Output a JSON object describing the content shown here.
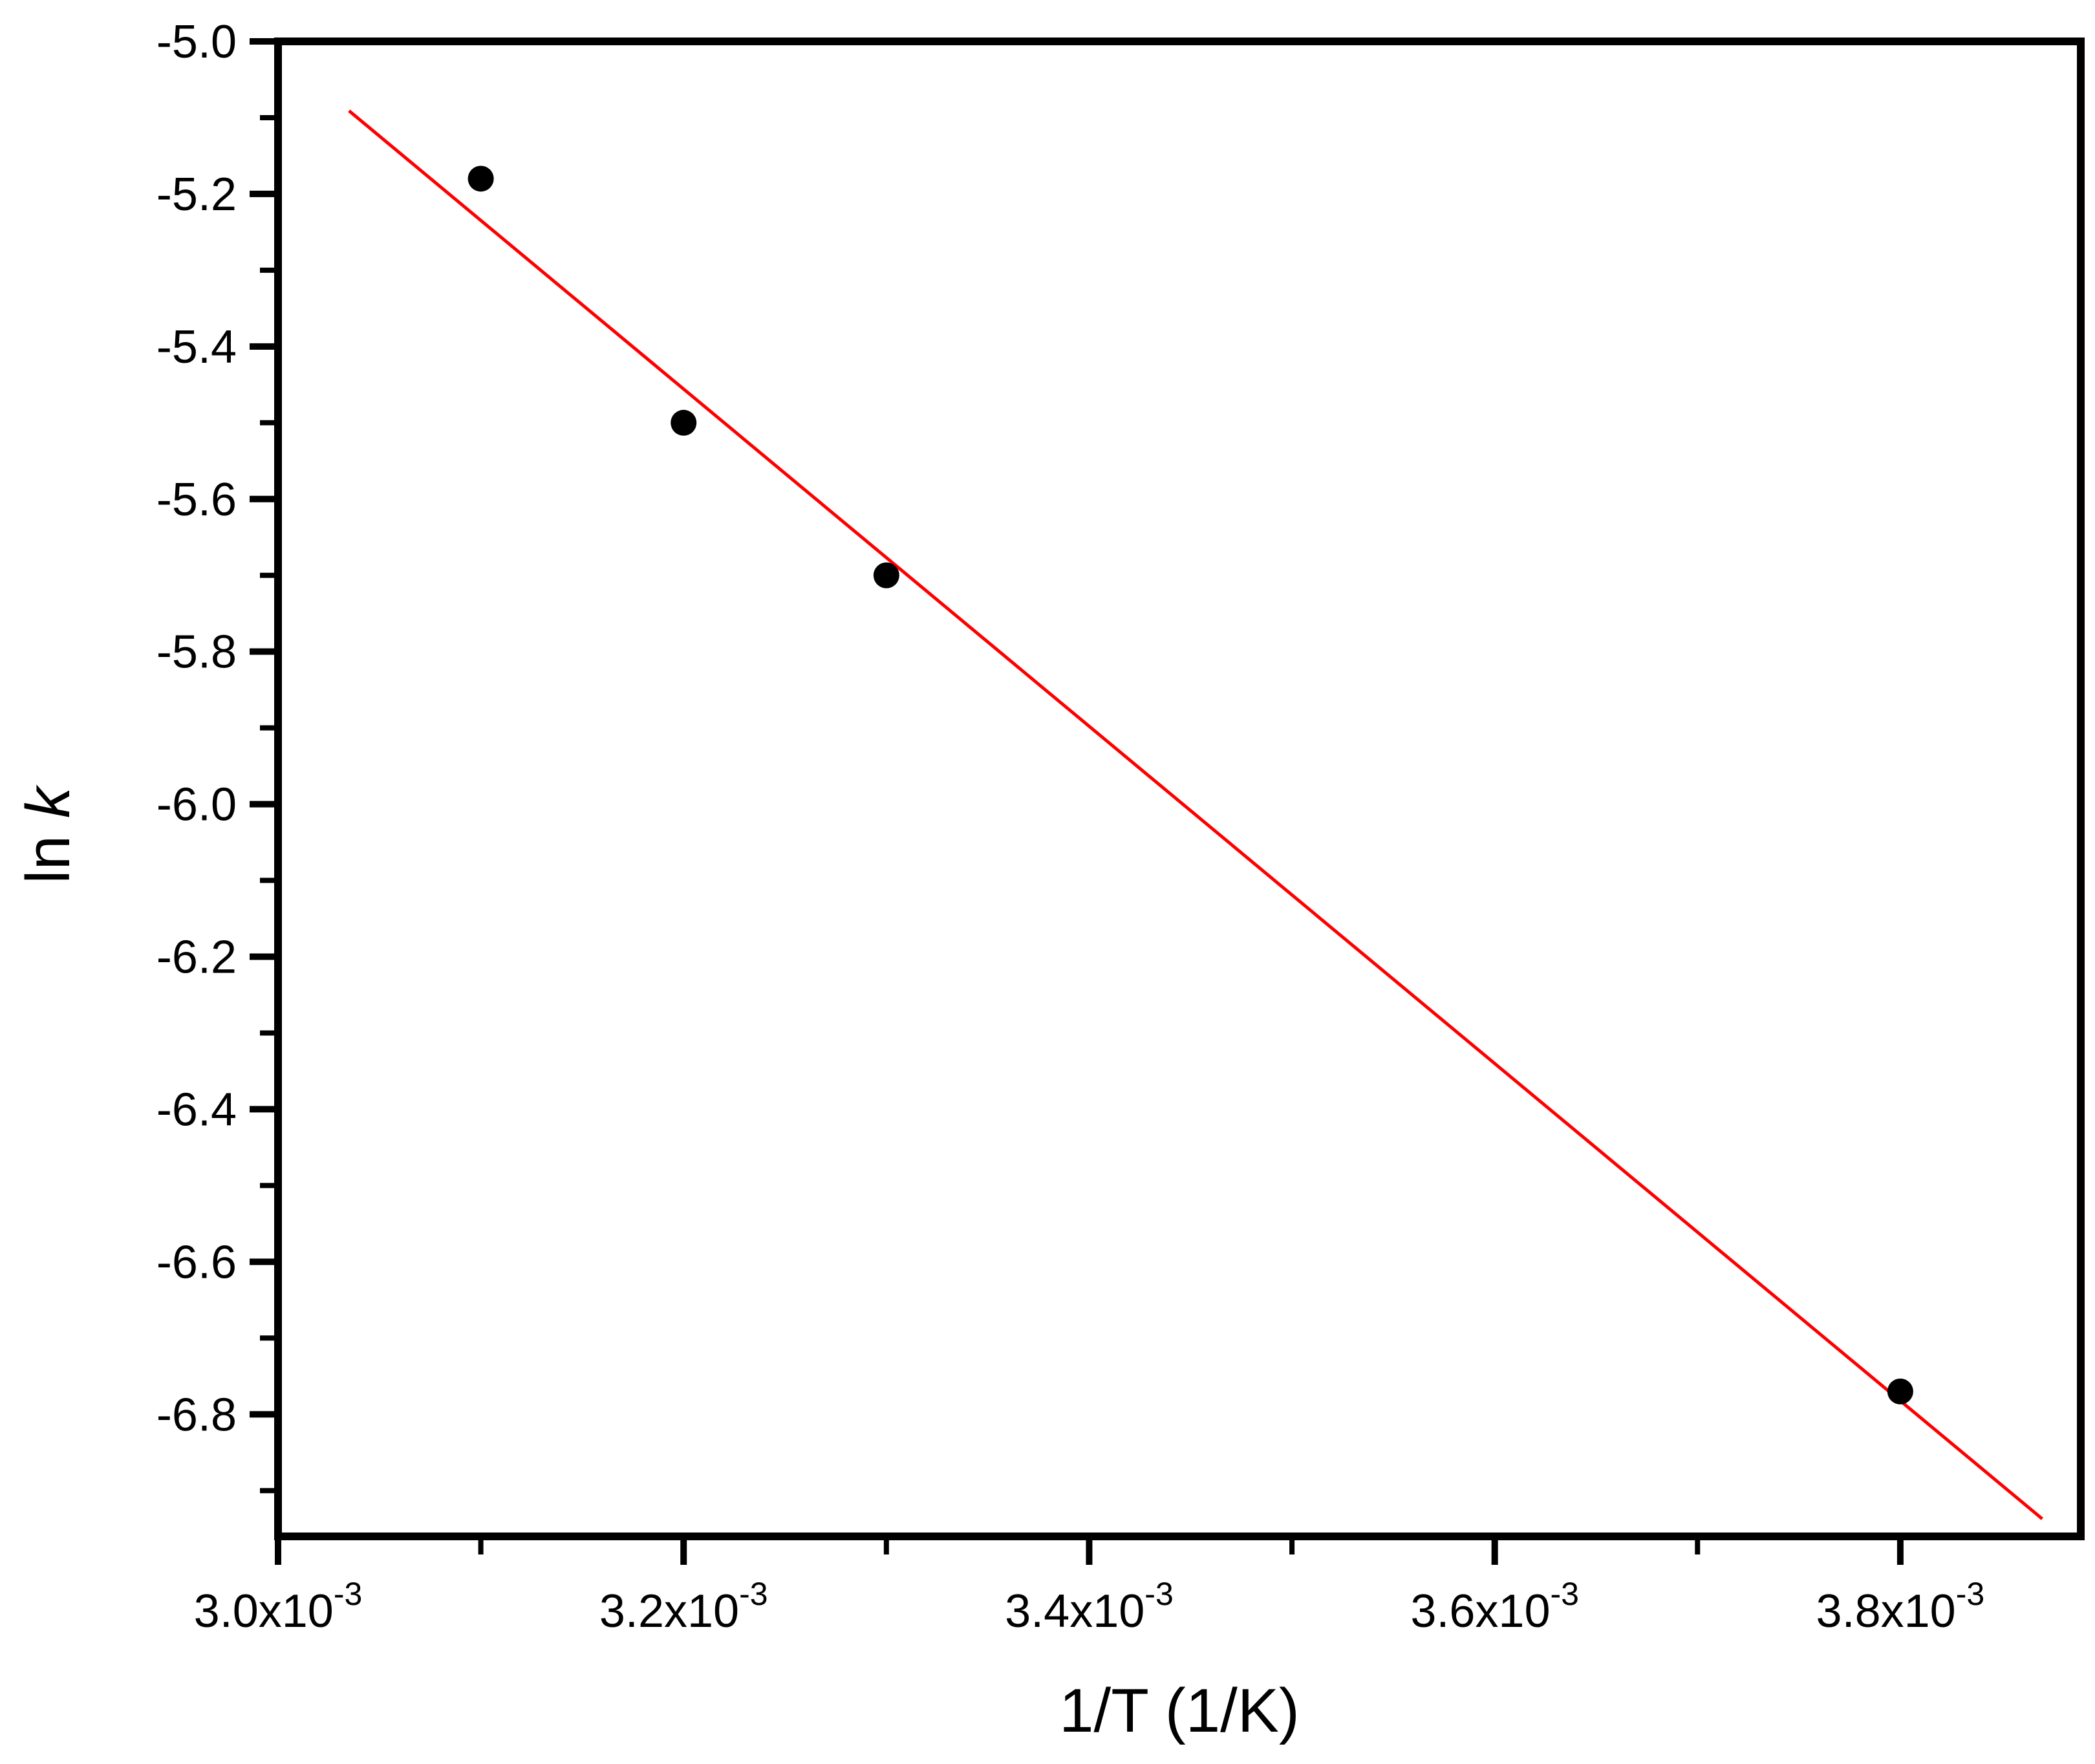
{
  "chart_data": {
    "type": "scatter",
    "title": "",
    "xlabel": "1/T (1/K)",
    "ylabel": "ln k",
    "ylabel_parts": [
      {
        "text": "ln ",
        "italic": false
      },
      {
        "text": "k",
        "italic": true
      }
    ],
    "xlim": [
      0.003,
      0.003889
    ],
    "ylim": [
      -6.96,
      -5.0
    ],
    "grid": false,
    "legend": "none",
    "x_major_ticks": [
      0.003,
      0.0032,
      0.0034,
      0.0036,
      0.0038
    ],
    "x_tick_labels": [
      {
        "mantissa": "3.0x10",
        "exp": "-3"
      },
      {
        "mantissa": "3.2x10",
        "exp": "-3"
      },
      {
        "mantissa": "3.4x10",
        "exp": "-3"
      },
      {
        "mantissa": "3.6x10",
        "exp": "-3"
      },
      {
        "mantissa": "3.8x10",
        "exp": "-3"
      }
    ],
    "x_minor_ticks": [
      0.0031,
      0.0033,
      0.0035,
      0.0037
    ],
    "y_major_ticks": [
      -5.0,
      -5.2,
      -5.4,
      -5.6,
      -5.8,
      -6.0,
      -6.2,
      -6.4,
      -6.6,
      -6.8
    ],
    "y_tick_labels": [
      "-5.0",
      "-5.2",
      "-5.4",
      "-5.6",
      "-5.8",
      "-6.0",
      "-6.2",
      "-6.4",
      "-6.6",
      "-6.8"
    ],
    "y_minor_ticks": [
      -5.1,
      -5.3,
      -5.5,
      -5.7,
      -5.9,
      -6.1,
      -6.3,
      -6.5,
      -6.7,
      -6.9
    ],
    "points": [
      {
        "x": 0.0031,
        "y": -5.18
      },
      {
        "x": 0.0032,
        "y": -5.5
      },
      {
        "x": 0.0033,
        "y": -5.7
      },
      {
        "x": 0.0038,
        "y": -6.77
      }
    ],
    "fit_line": {
      "x1": 0.003035,
      "y1": -5.091,
      "x2": 0.00387,
      "y2": -6.937
    },
    "marker_radius_px": 20,
    "colors": {
      "points": "#000000",
      "fit_line": "#fe0000",
      "axis": "#000000",
      "text": "#000000",
      "background": "#ffffff"
    }
  }
}
